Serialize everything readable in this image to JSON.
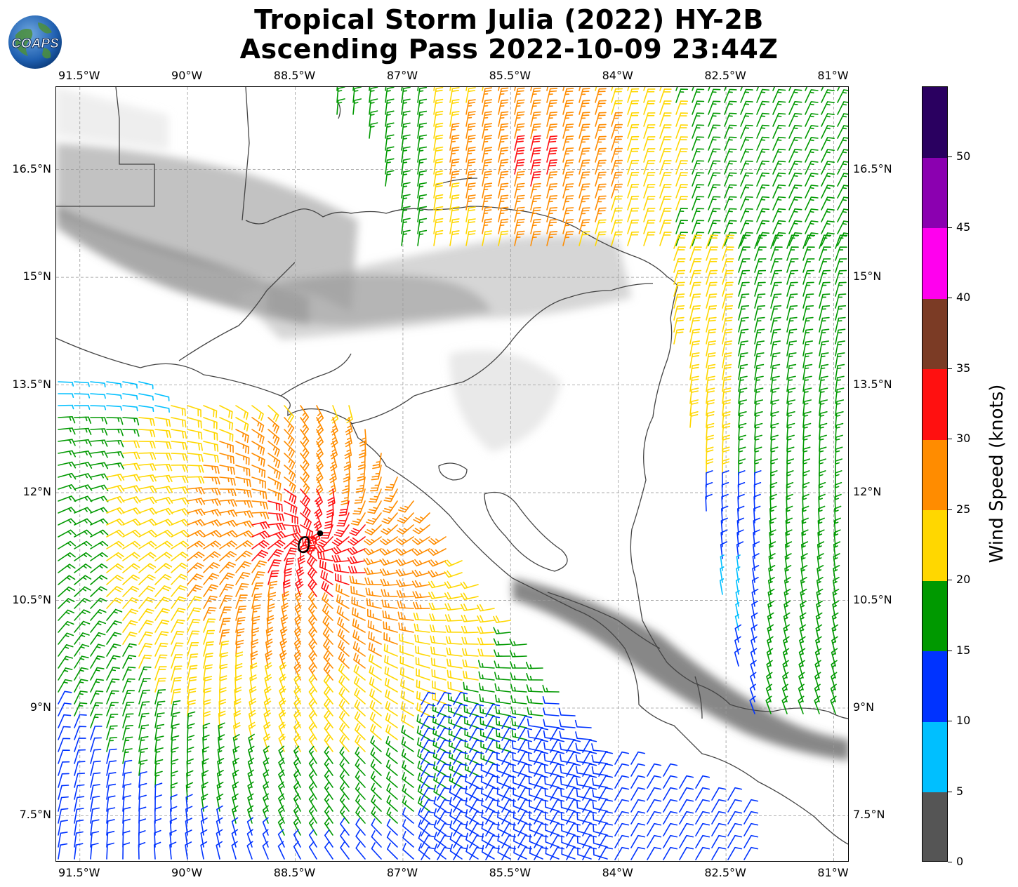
{
  "title_line1": "Tropical Storm Julia (2022) HY-2B",
  "title_line2": "Ascending Pass 2022-10-09 23:44Z",
  "logo_text": "COAPS",
  "map": {
    "lon_labels": [
      "91.5°W",
      "90°W",
      "88.5°W",
      "87°W",
      "85.5°W",
      "84°W",
      "82.5°W",
      "81°W"
    ],
    "lat_labels": [
      "16.5°N",
      "15°N",
      "13.5°N",
      "12°N",
      "10.5°N",
      "9°N",
      "7.5°N"
    ],
    "lon_range": [
      -91.83,
      -80.78
    ],
    "lat_range": [
      6.85,
      17.65
    ],
    "basemap": "grayscale terrain relief with coastlines and country borders",
    "storm_center_marker": {
      "lon": -88.45,
      "lat": 11.3
    },
    "wind_barbs": "colored by wind speed (knots)"
  },
  "colorbar": {
    "label": "Wind Speed (knots)",
    "ticks": [
      "0",
      "5",
      "10",
      "15",
      "20",
      "25",
      "30",
      "35",
      "40",
      "45",
      "50"
    ],
    "bins": [
      {
        "range": [
          0,
          5
        ],
        "color": "#555555"
      },
      {
        "range": [
          5,
          10
        ],
        "color": "#00bfff"
      },
      {
        "range": [
          10,
          15
        ],
        "color": "#0033ff"
      },
      {
        "range": [
          15,
          20
        ],
        "color": "#009900"
      },
      {
        "range": [
          20,
          25
        ],
        "color": "#ffd700"
      },
      {
        "range": [
          25,
          30
        ],
        "color": "#ff8c00"
      },
      {
        "range": [
          30,
          35
        ],
        "color": "#ff1010"
      },
      {
        "range": [
          35,
          40
        ],
        "color": "#7b3b25"
      },
      {
        "range": [
          40,
          45
        ],
        "color": "#ff00ee"
      },
      {
        "range": [
          45,
          50
        ],
        "color": "#8b00b0"
      },
      {
        "range": [
          50,
          55
        ],
        "color": "#2a0060"
      }
    ]
  }
}
